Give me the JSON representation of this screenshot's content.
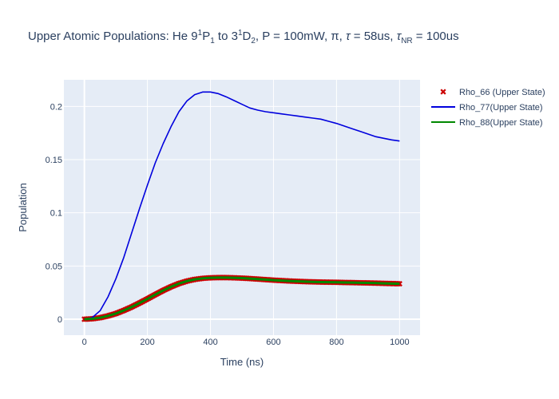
{
  "chart_data": {
    "type": "line",
    "title": {
      "prefix": "Upper Atomic Populations: He 9",
      "sup1": "1",
      "mid1": "P",
      "sub1": "1",
      "mid2": " to 3",
      "sup2": "1",
      "mid3": "D",
      "sub2": "2",
      "mid4": ", P = 100mW, π, ",
      "tau1": "τ",
      "mid5": " = 58us, ",
      "tau2": "τ",
      "sub3": "NR",
      "suffix": " = 100us"
    },
    "xlabel": "Time (ns)",
    "ylabel": "Population",
    "xlim": [
      -65,
      1065
    ],
    "ylim": [
      -0.015,
      0.225
    ],
    "x_ticks": [
      0,
      200,
      400,
      600,
      800,
      1000
    ],
    "x_tick_labels": [
      "0",
      "200",
      "400",
      "600",
      "800",
      "1000"
    ],
    "y_ticks": [
      0,
      0.05,
      0.1,
      0.15,
      0.2
    ],
    "y_tick_labels": [
      "0",
      "0.05",
      "0.1",
      "0.15",
      "0.2"
    ],
    "grid": true,
    "legend_position": "top-right",
    "x": [
      0,
      25,
      50,
      75,
      100,
      125,
      150,
      175,
      200,
      225,
      250,
      275,
      300,
      325,
      350,
      375,
      400,
      425,
      450,
      475,
      500,
      525,
      550,
      575,
      600,
      625,
      650,
      675,
      700,
      725,
      750,
      775,
      800,
      825,
      850,
      875,
      900,
      925,
      950,
      975,
      1000
    ],
    "series": [
      {
        "name": "Rho_66 (Upper State)",
        "mode": "markers",
        "color": "#cc0000",
        "values": [
          0.0,
          0.0004,
          0.0014,
          0.0031,
          0.0053,
          0.0082,
          0.0115,
          0.0152,
          0.0191,
          0.0231,
          0.027,
          0.0305,
          0.0335,
          0.0358,
          0.0374,
          0.0384,
          0.0389,
          0.0391,
          0.0391,
          0.0389,
          0.0386,
          0.0382,
          0.0377,
          0.0372,
          0.0367,
          0.0363,
          0.0359,
          0.0356,
          0.0353,
          0.0351,
          0.0349,
          0.0348,
          0.0347,
          0.0345,
          0.0344,
          0.0342,
          0.0341,
          0.0339,
          0.0337,
          0.0335,
          0.0333
        ]
      },
      {
        "name": "Rho_77(Upper State)",
        "mode": "lines",
        "color": "#0000dd",
        "values": [
          0.0,
          0.0015,
          0.008,
          0.021,
          0.038,
          0.058,
          0.081,
          0.104,
          0.126,
          0.147,
          0.165,
          0.181,
          0.195,
          0.205,
          0.211,
          0.2135,
          0.2135,
          0.212,
          0.209,
          0.2055,
          0.202,
          0.1985,
          0.1965,
          0.195,
          0.194,
          0.193,
          0.192,
          0.191,
          0.19,
          0.189,
          0.188,
          0.186,
          0.184,
          0.1815,
          0.179,
          0.1765,
          0.174,
          0.1715,
          0.17,
          0.1685,
          0.1675
        ]
      },
      {
        "name": "Rho_88(Upper State)",
        "mode": "lines",
        "color": "#008800",
        "values": [
          0.0,
          0.0004,
          0.0014,
          0.0031,
          0.0053,
          0.0082,
          0.0115,
          0.0152,
          0.0191,
          0.0231,
          0.027,
          0.0305,
          0.0335,
          0.0358,
          0.0374,
          0.0384,
          0.0389,
          0.0391,
          0.0391,
          0.0389,
          0.0386,
          0.0382,
          0.0377,
          0.0372,
          0.0367,
          0.0363,
          0.0359,
          0.0356,
          0.0353,
          0.0351,
          0.0349,
          0.0348,
          0.0347,
          0.0345,
          0.0344,
          0.0342,
          0.0341,
          0.0339,
          0.0337,
          0.0335,
          0.0333
        ]
      }
    ],
    "colors": {
      "plot_bg": "#e5ecf6",
      "grid": "#ffffff",
      "text": "#2a3f5f"
    }
  }
}
